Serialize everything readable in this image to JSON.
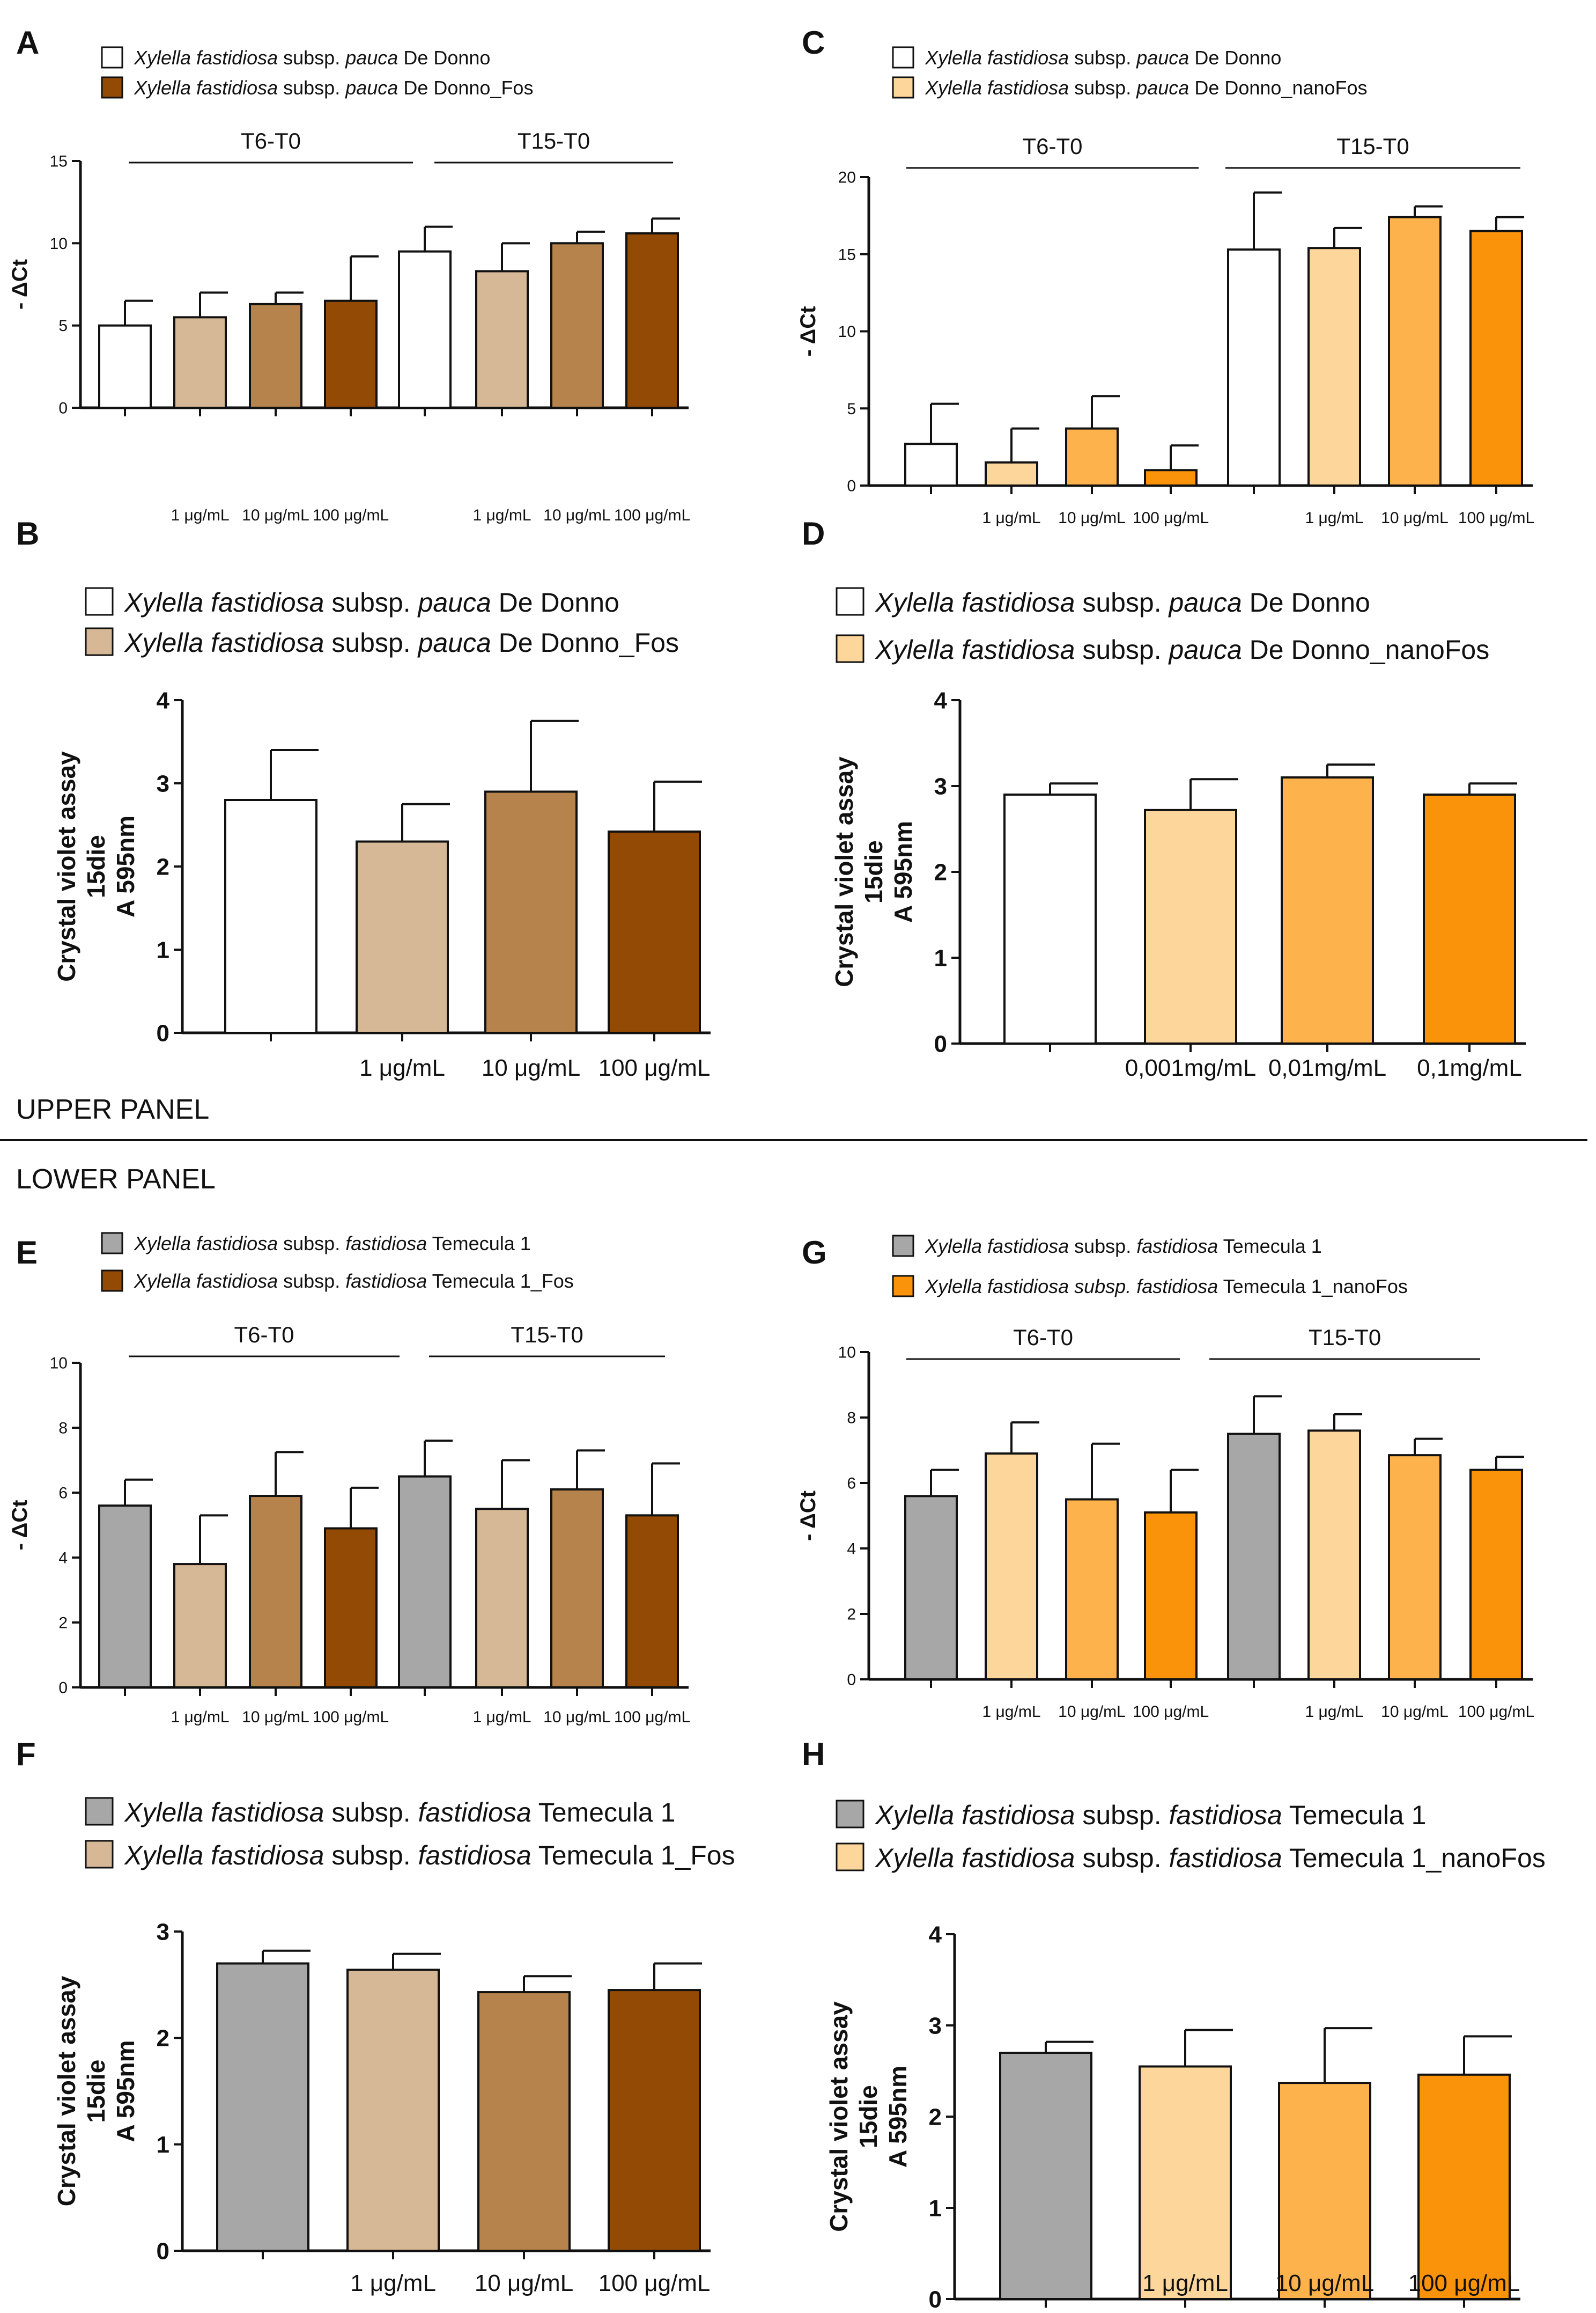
{
  "figure": {
    "upper_panel_label": "UPPER PANEL",
    "lower_panel_label": "LOWER PANEL"
  },
  "colors": {
    "white": "#ffffff",
    "brown_light": "#d6b896",
    "brown_mid": "#b5834b",
    "brown_dark": "#924a05",
    "orange_light": "#fdd69b",
    "orange_mid": "#fdb24c",
    "orange_dark": "#fb930a",
    "gray": "#a7a7a7",
    "axis": "#111111"
  },
  "chart_data": [
    {
      "id": "A",
      "type": "bar",
      "ylabel": "- ΔCt",
      "ylim": [
        0,
        15
      ],
      "yticks": [
        "0",
        "5",
        "10",
        "15"
      ],
      "groups": [
        "T6-T0",
        "T15-T0"
      ],
      "categories": [
        "",
        "1 μg/mL",
        "10 μg/mL",
        "100 μg/mL",
        "",
        "1 μg/mL",
        "10 μg/mL",
        "100 μg/mL"
      ],
      "values": [
        5.0,
        5.5,
        6.3,
        6.5,
        9.5,
        8.3,
        10.0,
        10.6
      ],
      "errors": [
        1.5,
        1.5,
        0.7,
        2.7,
        1.5,
        1.7,
        0.7,
        0.9
      ],
      "colors": [
        "white",
        "brown_light",
        "brown_mid",
        "brown_dark",
        "white",
        "brown_light",
        "brown_mid",
        "brown_dark"
      ],
      "legend": [
        {
          "italic": "Xylella fastidiosa",
          "plain1": " subsp. ",
          "italic2": "pauca",
          "plain2": " De Donno",
          "color": "white"
        },
        {
          "italic": "Xylella fastidiosa",
          "plain1": " subsp. ",
          "italic2": "pauca",
          "plain2": " De Donno_Fos",
          "color": "brown_dark"
        }
      ]
    },
    {
      "id": "B",
      "type": "bar",
      "ylabel": "Crystal violet assay",
      "ylabel2": "15die",
      "ylabel3": "A 595nm",
      "ylim": [
        0,
        4
      ],
      "yticks": [
        "0",
        "1",
        "2",
        "3",
        "4"
      ],
      "categories": [
        "",
        "1 μg/mL",
        "10 μg/mL",
        "100 μg/mL"
      ],
      "values": [
        2.8,
        2.3,
        2.9,
        2.42
      ],
      "errors": [
        0.6,
        0.45,
        0.85,
        0.6
      ],
      "colors": [
        "white",
        "brown_light",
        "brown_mid",
        "brown_dark"
      ],
      "legend": [
        {
          "italic": "Xylella fastidiosa",
          "plain1": " subsp.  ",
          "italic2": "pauca",
          "plain2": " De Donno",
          "color": "white"
        },
        {
          "italic": "Xylella fastidiosa",
          "plain1": " subsp.  ",
          "italic2": "pauca",
          "plain2": " De Donno_Fos",
          "color": "brown_light"
        }
      ]
    },
    {
      "id": "C",
      "type": "bar",
      "ylabel": "- ΔCt",
      "ylim": [
        0,
        20
      ],
      "yticks": [
        "0",
        "5",
        "10",
        "15",
        "20"
      ],
      "groups": [
        "T6-T0",
        "T15-T0"
      ],
      "categories": [
        "",
        "1 μg/mL",
        "10 μg/mL",
        "100 μg/mL",
        "",
        "1 μg/mL",
        "10 μg/mL",
        "100 μg/mL"
      ],
      "values": [
        2.7,
        1.5,
        3.7,
        1.0,
        15.3,
        15.4,
        17.4,
        16.5
      ],
      "errors": [
        2.6,
        2.2,
        2.1,
        1.6,
        3.7,
        1.3,
        0.7,
        0.9
      ],
      "colors": [
        "white",
        "orange_light",
        "orange_mid",
        "orange_dark",
        "white",
        "orange_light",
        "orange_mid",
        "orange_dark"
      ],
      "legend": [
        {
          "italic": "Xylella fastidiosa",
          "plain1": " subsp. ",
          "italic2": "pauca",
          "plain2": " De Donno",
          "color": "white"
        },
        {
          "italic": "Xylella fastidiosa",
          "plain1": " subsp. ",
          "italic2": "pauca",
          "plain2": " De Donno_nanoFos",
          "color": "orange_light"
        }
      ]
    },
    {
      "id": "D",
      "type": "bar",
      "ylabel": "Crystal violet assay",
      "ylabel2": "15die",
      "ylabel3": "A 595nm",
      "ylim": [
        0,
        4
      ],
      "yticks": [
        "0",
        "1",
        "2",
        "3",
        "4"
      ],
      "categories": [
        "",
        "0,001mg/mL",
        "0,01mg/mL",
        "0,1mg/mL"
      ],
      "values": [
        2.9,
        2.72,
        3.1,
        2.9
      ],
      "errors": [
        0.13,
        0.36,
        0.15,
        0.13
      ],
      "colors": [
        "white",
        "orange_light",
        "orange_mid",
        "orange_dark"
      ],
      "legend": [
        {
          "italic": "Xylella fastidiosa",
          "plain1": " subsp.  ",
          "italic2": "pauca",
          "plain2": " De Donno",
          "color": "white"
        },
        {
          "italic": "Xylella fastidiosa",
          "plain1": " subsp.  ",
          "italic2": "pauca",
          "plain2": " De Donno_nanoFos",
          "color": "orange_light"
        }
      ]
    },
    {
      "id": "E",
      "type": "bar",
      "ylabel": "- ΔCt",
      "ylim": [
        0,
        10
      ],
      "yticks": [
        "0",
        "2",
        "4",
        "6",
        "8",
        "10"
      ],
      "groups": [
        "T6-T0",
        "T15-T0"
      ],
      "categories": [
        "",
        "1 μg/mL",
        "10 μg/mL",
        "100 μg/mL",
        "",
        "1 μg/mL",
        "10 μg/mL",
        "100 μg/mL"
      ],
      "values": [
        5.6,
        3.8,
        5.9,
        4.9,
        6.5,
        5.5,
        6.1,
        5.3
      ],
      "errors": [
        0.8,
        1.5,
        1.35,
        1.25,
        1.1,
        1.5,
        1.2,
        1.6
      ],
      "colors": [
        "gray",
        "brown_light",
        "brown_mid",
        "brown_dark",
        "gray",
        "brown_light",
        "brown_mid",
        "brown_dark"
      ],
      "legend": [
        {
          "italic": "Xylella fastidiosa",
          "plain1": " subsp. ",
          "italic2": "fastidiosa",
          "plain2": " Temecula 1",
          "color": "gray"
        },
        {
          "italic": "Xylella fastidiosa",
          "plain1": " subsp. ",
          "italic2": "fastidiosa",
          "plain2": " Temecula 1_Fos",
          "color": "brown_dark"
        }
      ]
    },
    {
      "id": "F",
      "type": "bar",
      "ylabel": "Crystal violet assay",
      "ylabel2": "15die",
      "ylabel3": "A 595nm",
      "ylim": [
        0,
        3
      ],
      "yticks": [
        "0",
        "1",
        "2",
        "3"
      ],
      "categories": [
        "",
        "1 μg/mL",
        "10 μg/mL",
        "100 μg/mL"
      ],
      "values": [
        2.7,
        2.64,
        2.43,
        2.45
      ],
      "errors": [
        0.12,
        0.15,
        0.15,
        0.25
      ],
      "colors": [
        "gray",
        "brown_light",
        "brown_mid",
        "brown_dark"
      ],
      "legend": [
        {
          "italic": "Xylella fastidiosa",
          "plain1": " subsp. ",
          "italic2": "fastidiosa",
          "plain2": " Temecula 1",
          "color": "gray"
        },
        {
          "italic": "Xylella fastidiosa",
          "plain1": " subsp. ",
          "italic2": "fastidiosa",
          "plain2": " Temecula 1_Fos",
          "color": "brown_light"
        }
      ]
    },
    {
      "id": "G",
      "type": "bar",
      "ylabel": "- ΔCt",
      "ylim": [
        0,
        10
      ],
      "yticks": [
        "0",
        "2",
        "4",
        "6",
        "8",
        "10"
      ],
      "groups": [
        "T6-T0",
        "T15-T0"
      ],
      "categories": [
        "",
        "1 μg/mL",
        "10 μg/mL",
        "100 μg/mL",
        "",
        "1 μg/mL",
        "10 μg/mL",
        "100 μg/mL"
      ],
      "values": [
        5.6,
        6.9,
        5.5,
        5.1,
        7.5,
        7.6,
        6.85,
        6.4
      ],
      "errors": [
        0.8,
        0.95,
        1.7,
        1.3,
        1.15,
        0.5,
        0.5,
        0.4
      ],
      "colors": [
        "gray",
        "orange_light",
        "orange_mid",
        "orange_dark",
        "gray",
        "orange_light",
        "orange_mid",
        "orange_dark"
      ],
      "legend": [
        {
          "italic": "Xylella fastidiosa",
          "plain1": " subsp. ",
          "italic2": "fastidiosa",
          "plain2": " Temecula 1",
          "color": "gray"
        },
        {
          "italic": "Xylella fastidiosa subsp. fastidiosa",
          "plain1": "",
          "italic2": "",
          "plain2": " Temecula 1_nanoFos",
          "color": "orange_dark"
        }
      ]
    },
    {
      "id": "H",
      "type": "bar",
      "ylabel": "Crystal violet assay",
      "ylabel2": "15die",
      "ylabel3": "A 595nm",
      "ylim": [
        0,
        4
      ],
      "yticks": [
        "0",
        "1",
        "2",
        "3",
        "4"
      ],
      "categories": [
        "",
        "1 μg/mL",
        "10 μg/mL",
        "100 μg/mL"
      ],
      "values": [
        2.7,
        2.55,
        2.37,
        2.46
      ],
      "errors": [
        0.12,
        0.4,
        0.6,
        0.42
      ],
      "colors": [
        "gray",
        "orange_light",
        "orange_mid",
        "orange_dark"
      ],
      "legend": [
        {
          "italic": "Xylella fastidiosa",
          "plain1": " subsp. ",
          "italic2": "fastidiosa",
          "plain2": " Temecula 1",
          "color": "gray"
        },
        {
          "italic": "Xylella fastidiosa",
          "plain1": " subsp. ",
          "italic2": "fastidiosa",
          "plain2": " Temecula 1_nanoFos",
          "color": "orange_light"
        }
      ]
    }
  ]
}
